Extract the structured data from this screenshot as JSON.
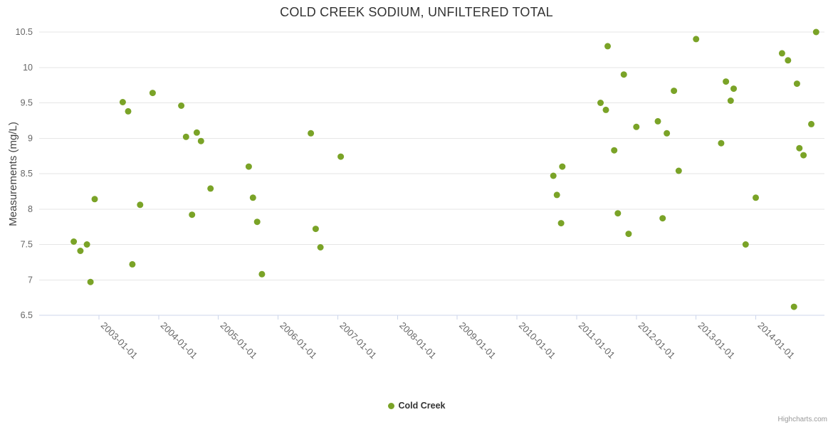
{
  "credits": "Highcharts.com",
  "chart_data": {
    "type": "scatter",
    "title": "COLD CREEK SODIUM, UNFILTERED TOTAL",
    "xlabel": "",
    "ylabel": "Measurements (mg/L)",
    "ylim": [
      6.5,
      10.5
    ],
    "y_tick_step": 0.5,
    "xlim": [
      2002.0,
      2015.15
    ],
    "grid": true,
    "legend_position": "bottom-center",
    "x_ticks": [
      2003,
      2004,
      2005,
      2006,
      2007,
      2008,
      2009,
      2010,
      2011,
      2012,
      2013,
      2014
    ],
    "x_tick_labels": [
      "2003-01-01",
      "2004-01-01",
      "2005-01-01",
      "2006-01-01",
      "2007-01-01",
      "2008-01-01",
      "2009-01-01",
      "2010-01-01",
      "2011-01-01",
      "2012-01-01",
      "2013-01-01",
      "2014-01-01"
    ],
    "series": [
      {
        "name": "Cold Creek",
        "color": "#7aa327",
        "data": [
          [
            2002.58,
            7.54
          ],
          [
            2002.69,
            7.41
          ],
          [
            2002.8,
            7.5
          ],
          [
            2002.86,
            6.97
          ],
          [
            2002.93,
            8.14
          ],
          [
            2003.4,
            9.51
          ],
          [
            2003.49,
            9.38
          ],
          [
            2003.56,
            7.22
          ],
          [
            2003.69,
            8.06
          ],
          [
            2003.9,
            9.64
          ],
          [
            2004.38,
            9.46
          ],
          [
            2004.46,
            9.02
          ],
          [
            2004.56,
            7.92
          ],
          [
            2004.64,
            9.08
          ],
          [
            2004.71,
            8.96
          ],
          [
            2004.87,
            8.29
          ],
          [
            2005.51,
            8.6
          ],
          [
            2005.58,
            8.16
          ],
          [
            2005.65,
            7.82
          ],
          [
            2005.73,
            7.08
          ],
          [
            2006.55,
            9.07
          ],
          [
            2006.63,
            7.72
          ],
          [
            2006.71,
            7.46
          ],
          [
            2007.05,
            8.74
          ],
          [
            2010.61,
            8.47
          ],
          [
            2010.67,
            8.2
          ],
          [
            2010.74,
            7.8
          ],
          [
            2010.76,
            8.6
          ],
          [
            2011.4,
            9.5
          ],
          [
            2011.49,
            9.4
          ],
          [
            2011.52,
            10.3
          ],
          [
            2011.63,
            8.83
          ],
          [
            2011.69,
            7.94
          ],
          [
            2011.79,
            9.9
          ],
          [
            2011.87,
            7.65
          ],
          [
            2012.0,
            9.16
          ],
          [
            2012.36,
            9.24
          ],
          [
            2012.44,
            7.87
          ],
          [
            2012.51,
            9.07
          ],
          [
            2012.63,
            9.67
          ],
          [
            2012.71,
            8.54
          ],
          [
            2013.0,
            10.4
          ],
          [
            2013.42,
            8.93
          ],
          [
            2013.5,
            9.8
          ],
          [
            2013.58,
            9.53
          ],
          [
            2013.63,
            9.7
          ],
          [
            2013.83,
            7.5
          ],
          [
            2014.0,
            8.16
          ],
          [
            2014.44,
            10.2
          ],
          [
            2014.54,
            10.1
          ],
          [
            2014.64,
            6.62
          ],
          [
            2014.69,
            9.77
          ],
          [
            2014.73,
            8.86
          ],
          [
            2014.8,
            8.76
          ],
          [
            2014.93,
            9.2
          ],
          [
            2015.01,
            10.5
          ]
        ]
      }
    ]
  }
}
